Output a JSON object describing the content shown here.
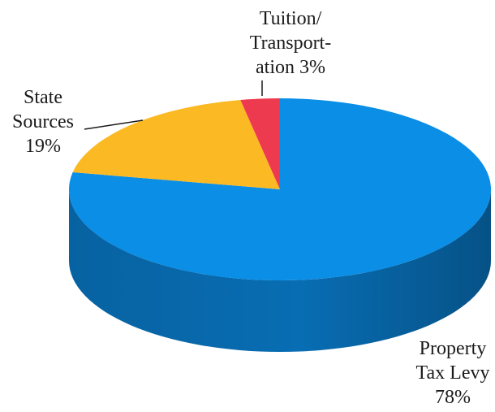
{
  "chart_data": {
    "type": "pie",
    "style": "3d",
    "title": "",
    "slices": [
      {
        "key": "property",
        "label_lines": [
          "Property",
          "Tax Levy",
          "78%"
        ],
        "value": 78,
        "color": "#0a8ee6",
        "side_color": "#086db3"
      },
      {
        "key": "state",
        "label_lines": [
          "State",
          "Sources",
          "19%"
        ],
        "value": 19,
        "color": "#fbb924",
        "side_color": "#c9901a"
      },
      {
        "key": "tuition",
        "label_lines": [
          "Tuition/",
          "Transport-",
          "ation 3%"
        ],
        "value": 3,
        "color": "#ee3a4e",
        "side_color": "#b92c3c"
      }
    ]
  }
}
